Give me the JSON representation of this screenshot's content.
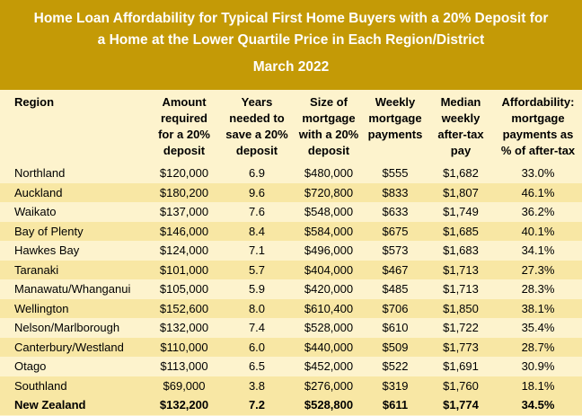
{
  "title": {
    "line1": "Home Loan Affordability for Typical First Home Buyers with a 20% Deposit for",
    "line2": "a Home at the Lower Quartile Price in Each Region/District",
    "date": "March 2022"
  },
  "columns": [
    [
      "Region"
    ],
    [
      "Amount",
      "required",
      "for a 20%",
      "deposit"
    ],
    [
      "Years",
      "needed to",
      "save a 20%",
      "deposit"
    ],
    [
      "Size of",
      "mortgage",
      "with a 20%",
      "deposit"
    ],
    [
      "Weekly",
      "mortgage",
      "payments"
    ],
    [
      "Median",
      "weekly",
      "after-tax",
      "pay"
    ],
    [
      "Affordability:",
      "mortgage",
      "payments as",
      "% of after-tax"
    ]
  ],
  "rows": [
    [
      "Northland",
      "$120,000",
      "6.9",
      "$480,000",
      "$555",
      "$1,682",
      "33.0%"
    ],
    [
      "Auckland",
      "$180,200",
      "9.6",
      "$720,800",
      "$833",
      "$1,807",
      "46.1%"
    ],
    [
      "Waikato",
      "$137,000",
      "7.6",
      "$548,000",
      "$633",
      "$1,749",
      "36.2%"
    ],
    [
      "Bay of Plenty",
      "$146,000",
      "8.4",
      "$584,000",
      "$675",
      "$1,685",
      "40.1%"
    ],
    [
      "Hawkes Bay",
      "$124,000",
      "7.1",
      "$496,000",
      "$573",
      "$1,683",
      "34.1%"
    ],
    [
      "Taranaki",
      "$101,000",
      "5.7",
      "$404,000",
      "$467",
      "$1,713",
      "27.3%"
    ],
    [
      "Manawatu/Whanganui",
      "$105,000",
      "5.9",
      "$420,000",
      "$485",
      "$1,713",
      "28.3%"
    ],
    [
      "Wellington",
      "$152,600",
      "8.0",
      "$610,400",
      "$706",
      "$1,850",
      "38.1%"
    ],
    [
      "Nelson/Marlborough",
      "$132,000",
      "7.4",
      "$528,000",
      "$610",
      "$1,722",
      "35.4%"
    ],
    [
      "Canterbury/Westland",
      "$110,000",
      "6.0",
      "$440,000",
      "$509",
      "$1,773",
      "28.7%"
    ],
    [
      "Otago",
      "$113,000",
      "6.5",
      "$452,000",
      "$522",
      "$1,691",
      "30.9%"
    ],
    [
      "Southland",
      "$69,000",
      "3.8",
      "$276,000",
      "$319",
      "$1,760",
      "18.1%"
    ]
  ],
  "total": [
    "New Zealand",
    "$132,200",
    "7.2",
    "$528,800",
    "$611",
    "$1,774",
    "34.5%"
  ]
}
